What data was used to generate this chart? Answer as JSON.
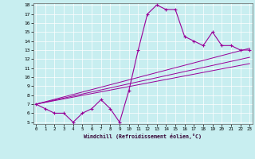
{
  "xlabel": "Windchill (Refroidissement éolien,°C)",
  "bg_color": "#c8eef0",
  "line_color": "#990099",
  "curve1_x": [
    0,
    1,
    2,
    3,
    4,
    5,
    6,
    7,
    8,
    9,
    10,
    11,
    12,
    13,
    14,
    15,
    16,
    17,
    18,
    19,
    20,
    21,
    22,
    23
  ],
  "curve1_y": [
    7.0,
    6.5,
    6.0,
    6.0,
    5.0,
    6.0,
    6.5,
    7.5,
    6.5,
    5.0,
    8.5,
    13.0,
    17.0,
    18.0,
    17.5,
    17.5,
    14.5,
    14.0,
    13.5,
    15.0,
    13.5,
    13.5,
    13.0,
    13.0
  ],
  "line2_x": [
    0,
    23
  ],
  "line2_y": [
    7.0,
    13.2
  ],
  "line3_x": [
    0,
    23
  ],
  "line3_y": [
    7.0,
    12.2
  ],
  "line4_x": [
    0,
    23
  ],
  "line4_y": [
    7.0,
    11.5
  ],
  "ylim_min": 5,
  "ylim_max": 18,
  "xlim_min": 0,
  "xlim_max": 23,
  "yticks": [
    5,
    6,
    7,
    8,
    9,
    10,
    11,
    12,
    13,
    14,
    15,
    16,
    17,
    18
  ],
  "xticks": [
    0,
    1,
    2,
    3,
    4,
    5,
    6,
    7,
    8,
    9,
    10,
    11,
    12,
    13,
    14,
    15,
    16,
    17,
    18,
    19,
    20,
    21,
    22,
    23
  ]
}
